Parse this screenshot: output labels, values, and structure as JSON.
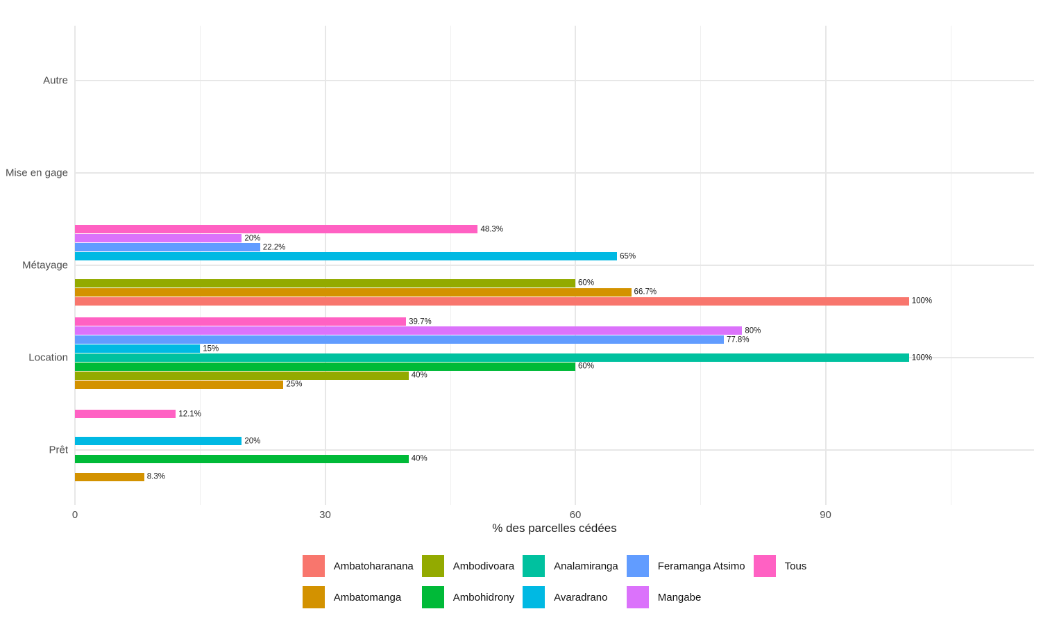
{
  "chart_data": {
    "type": "bar",
    "orientation": "horizontal",
    "title": "",
    "xlabel": "% des parcelles cédées",
    "ylabel": "",
    "xlim": [
      0,
      115
    ],
    "x_ticks": [
      0,
      30,
      60,
      90
    ],
    "x_minor_ticks": [
      15,
      45,
      75,
      105
    ],
    "grid": true,
    "legend_position": "bottom",
    "categories_top_to_bottom": [
      "Autre",
      "Mise en gage",
      "Métayage",
      "Location",
      "Prêt"
    ],
    "bar_order_top_to_bottom": [
      "Tous",
      "Mangabe",
      "Feramanga Atsimo",
      "Avaradrano",
      "Analamiranga",
      "Ambohidrony",
      "Ambodivoara",
      "Ambatomanga",
      "Ambatoharanana"
    ],
    "series": [
      {
        "name": "Ambatoharanana",
        "color": "#F8766D",
        "values": [
          null,
          null,
          100,
          null,
          null
        ],
        "labels": [
          null,
          null,
          "100%",
          null,
          null
        ]
      },
      {
        "name": "Ambodivoara",
        "color": "#93AA00",
        "values": [
          null,
          null,
          60,
          40,
          null
        ],
        "labels": [
          null,
          null,
          "60%",
          "40%",
          null
        ]
      },
      {
        "name": "Analamiranga",
        "color": "#00C19F",
        "values": [
          null,
          null,
          null,
          100,
          null
        ],
        "labels": [
          null,
          null,
          null,
          "100%",
          null
        ]
      },
      {
        "name": "Feramanga Atsimo",
        "color": "#619CFF",
        "values": [
          null,
          null,
          22.2,
          77.8,
          null
        ],
        "labels": [
          null,
          null,
          "22.2%",
          "77.8%",
          null
        ]
      },
      {
        "name": "Tous",
        "color": "#FF61C3",
        "values": [
          null,
          null,
          48.3,
          39.7,
          12.1
        ],
        "labels": [
          null,
          null,
          "48.3%",
          "39.7%",
          "12.1%"
        ]
      },
      {
        "name": "Ambatomanga",
        "color": "#D39200",
        "values": [
          null,
          null,
          66.7,
          25,
          8.3
        ],
        "labels": [
          null,
          null,
          "66.7%",
          "25%",
          "8.3%"
        ]
      },
      {
        "name": "Ambohidrony",
        "color": "#00BA38",
        "values": [
          null,
          null,
          null,
          60,
          40
        ],
        "labels": [
          null,
          null,
          null,
          "60%",
          "40%"
        ]
      },
      {
        "name": "Avaradrano",
        "color": "#00B9E3",
        "values": [
          null,
          null,
          65,
          15,
          20
        ],
        "labels": [
          null,
          null,
          "65%",
          "15%",
          "20%"
        ]
      },
      {
        "name": "Mangabe",
        "color": "#DB72FB",
        "values": [
          null,
          null,
          20,
          80,
          null
        ],
        "labels": [
          null,
          null,
          "20%",
          "80%",
          null
        ]
      }
    ]
  },
  "colors": {
    "background": "#FFFFFF",
    "grid_major": "#E7E7E7",
    "grid_minor": "#EFEFEF",
    "axis_text": "#4D4D4D",
    "axis_title_text": "#1F1F1F",
    "value_label_text": "#1A1A1A"
  }
}
